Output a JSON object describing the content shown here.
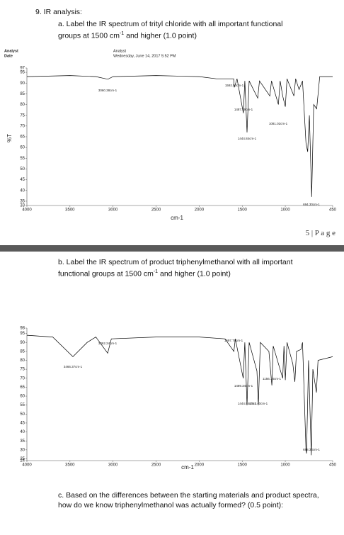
{
  "question": {
    "number": "9. IR analysis:",
    "a": {
      "text": "a. Label the IR spectrum of trityl chloride with all important functional groups at 1500 cm",
      "sup": "-1",
      "tail": " and higher (1.0 point)"
    },
    "b": {
      "text": "b. Label the IR spectrum of product triphenylmethanol with all important functional groups at 1500 cm",
      "sup": "-1",
      "tail": " and higher (1.0 point)"
    },
    "c": "c. Based on the differences between the starting materials and product spectra, how do we know triphenylmethanol was actually formed? (0.5 point):"
  },
  "page_footer": "5 | P a g e",
  "chart_data": [
    {
      "type": "line",
      "header": {
        "left_1": "Analyst",
        "left_2": "Date",
        "right_1": "Analyst",
        "right_2": "Wednesday, June 14, 2017 5:52 PM"
      },
      "xlabel": "cm-1",
      "ylabel": "%T",
      "x": [
        4000,
        3500,
        3200,
        3060,
        3000,
        2500,
        2000,
        1800,
        1600,
        1592,
        1560,
        1487,
        1470,
        1444,
        1420,
        1320,
        1300,
        1180,
        1160,
        1080,
        1060,
        1030,
        1000,
        980,
        900,
        880,
        840,
        800,
        760,
        740,
        720,
        694,
        670,
        636,
        600,
        450
      ],
      "series": [
        {
          "color": "#000000",
          "values": [
            93,
            93.5,
            93,
            91.8,
            93,
            93.5,
            93,
            92,
            92,
            88,
            92,
            76,
            91,
            67,
            91,
            83,
            91,
            84,
            91,
            80,
            91,
            84,
            79,
            92,
            84,
            92,
            87,
            91,
            62,
            58,
            75,
            37,
            80,
            78,
            93,
            93
          ]
        }
      ],
      "xlim": [
        4000,
        450
      ],
      "xticks": [
        4000,
        3500,
        3000,
        2500,
        2000,
        1500,
        1000,
        450
      ],
      "ylim": [
        33,
        97
      ],
      "yticks": [
        33,
        35,
        40,
        45,
        50,
        55,
        60,
        65,
        70,
        75,
        80,
        85,
        90,
        95,
        97
      ],
      "annotations": [
        "3060.38cm-1",
        "1592.50cm-1",
        "1487.79cm-1",
        "1444.84cm-1",
        "1081.02cm-1",
        "694.30cm-1"
      ]
    },
    {
      "type": "line",
      "xlabel": "cm-1",
      "x": [
        4000,
        3700,
        3466,
        3300,
        3200,
        3062,
        3020,
        2500,
        2000,
        1700,
        1597,
        1580,
        1489,
        1470,
        1444,
        1420,
        1329,
        1313,
        1290,
        1190,
        1156,
        1140,
        1030,
        1015,
        1000,
        980,
        913,
        889,
        870,
        820,
        800,
        760,
        753,
        730,
        698,
        680,
        639,
        620,
        450
      ],
      "series": [
        {
          "color": "#000000",
          "values": [
            94,
            93,
            82,
            90,
            93,
            84,
            92,
            93,
            93,
            92,
            85,
            92,
            70,
            90,
            55,
            90,
            74,
            55,
            90,
            85,
            66,
            88,
            70,
            88,
            69,
            90,
            78,
            68,
            85,
            86,
            90,
            30,
            28,
            80,
            27,
            75,
            62,
            80,
            82
          ]
        }
      ],
      "xlim": [
        4000,
        450
      ],
      "xticks": [
        4000,
        3500,
        3000,
        2500,
        2000,
        1500,
        1000,
        450
      ],
      "ylim": [
        24,
        98
      ],
      "yticks": [
        24,
        25,
        30,
        35,
        40,
        45,
        50,
        55,
        60,
        65,
        70,
        75,
        80,
        85,
        90,
        95,
        98
      ],
      "annotations": [
        "3466.37cm-1",
        "3062.24cm-1",
        "1597.79cm-1",
        "1489.34cm-1",
        "1444.94cm-1",
        "1313.40cm-1",
        "1156.14cm-1",
        "698.34cm-1"
      ]
    }
  ]
}
